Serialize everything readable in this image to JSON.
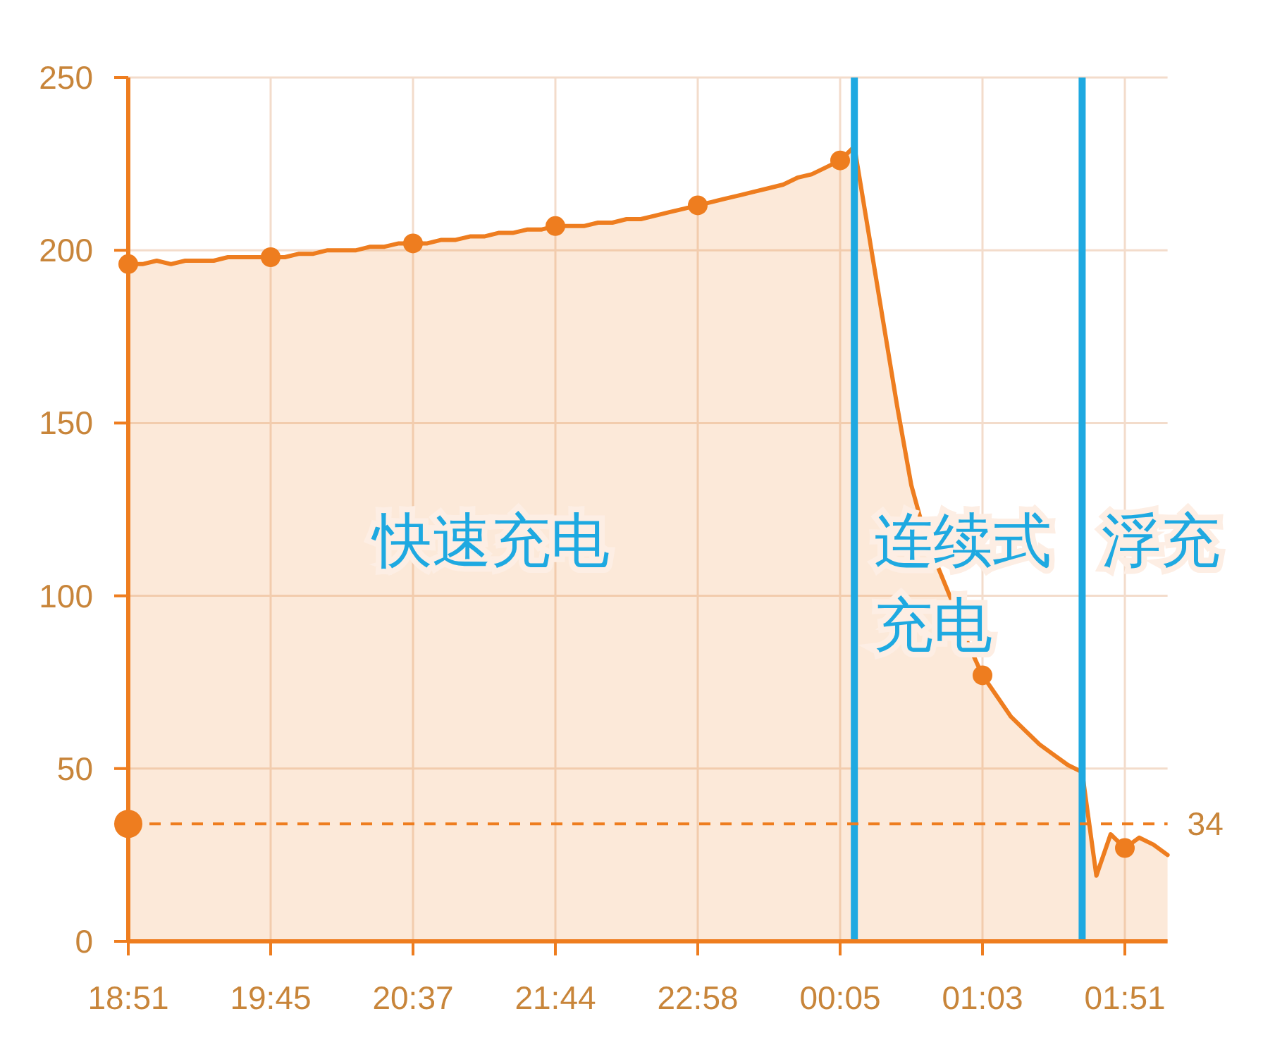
{
  "chart_data": {
    "type": "area",
    "categories": [
      "18:51",
      null,
      null,
      null,
      null,
      null,
      null,
      null,
      null,
      null,
      "19:45",
      null,
      null,
      null,
      null,
      null,
      null,
      null,
      null,
      null,
      "20:37",
      null,
      null,
      null,
      null,
      null,
      null,
      null,
      null,
      null,
      "21:44",
      null,
      null,
      null,
      null,
      null,
      null,
      null,
      null,
      null,
      "22:58",
      null,
      null,
      null,
      null,
      null,
      null,
      null,
      null,
      null,
      "00:05",
      null,
      null,
      null,
      null,
      null,
      null,
      null,
      null,
      null,
      "01:03",
      null,
      null,
      null,
      null,
      null,
      null,
      null,
      null,
      null,
      "01:51",
      null,
      null,
      null
    ],
    "series": [
      {
        "color": "#ee7d1f",
        "values": [
          196,
          196,
          197,
          196,
          197,
          197,
          197,
          198,
          198,
          198,
          198,
          198,
          199,
          199,
          200,
          200,
          200,
          201,
          201,
          202,
          202,
          202,
          203,
          203,
          204,
          204,
          205,
          205,
          206,
          206,
          207,
          207,
          207,
          208,
          208,
          209,
          209,
          210,
          211,
          212,
          213,
          214,
          215,
          216,
          217,
          218,
          219,
          221,
          222,
          224,
          226,
          230,
          205,
          180,
          155,
          132,
          117,
          107,
          97,
          86,
          77,
          71,
          65,
          61,
          57,
          54,
          51,
          49,
          19,
          31,
          27,
          30,
          28,
          25
        ]
      },
      {
        "type": "scatter",
        "color": "#ee7d1f",
        "values": [
          196,
          null,
          null,
          null,
          null,
          null,
          null,
          null,
          null,
          null,
          198,
          null,
          null,
          null,
          null,
          null,
          null,
          null,
          null,
          null,
          202,
          null,
          null,
          null,
          null,
          null,
          null,
          null,
          null,
          null,
          207,
          null,
          null,
          null,
          null,
          null,
          null,
          null,
          null,
          null,
          213,
          null,
          null,
          null,
          null,
          null,
          null,
          null,
          null,
          null,
          226,
          null,
          null,
          null,
          null,
          null,
          null,
          null,
          null,
          null,
          77,
          null,
          null,
          null,
          null,
          null,
          null,
          null,
          null,
          null,
          27,
          null,
          null,
          null
        ]
      }
    ],
    "ylim": [
      0,
      250
    ],
    "yticks": [
      0,
      50,
      100,
      150,
      200,
      250
    ],
    "grid": true,
    "ref_lines": [
      {
        "axis": "y",
        "value": 34,
        "label": "34",
        "color": "#ee7d1f",
        "line_style": "dashed"
      }
    ],
    "annotations": [
      "快速充电",
      "连续式充电",
      "浮充"
    ]
  }
}
